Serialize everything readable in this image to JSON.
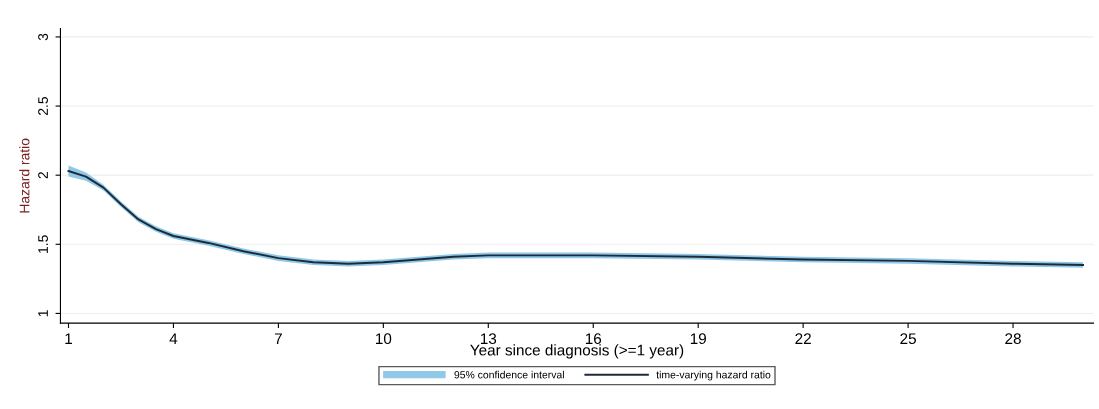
{
  "chart_data": {
    "type": "line",
    "xlabel": "Year since diagnosis (>=1 year)",
    "ylabel": "Hazard ratio",
    "annotations": [
      "95% confidence interval"
    ],
    "x": [
      1,
      1.5,
      2,
      2.5,
      3,
      3.5,
      4,
      5,
      6,
      7,
      8,
      9,
      10,
      11,
      12,
      13,
      14,
      16,
      19,
      22,
      25,
      28,
      30
    ],
    "series": [
      {
        "name": "time-varying hazard ratio",
        "color": "#1c2b3a",
        "values": [
          2.03,
          1.99,
          1.91,
          1.79,
          1.68,
          1.61,
          1.56,
          1.51,
          1.45,
          1.4,
          1.37,
          1.36,
          1.37,
          1.39,
          1.41,
          1.42,
          1.42,
          1.42,
          1.41,
          1.39,
          1.38,
          1.36,
          1.35
        ],
        "lower": [
          1.99,
          1.96,
          1.89,
          1.77,
          1.66,
          1.59,
          1.54,
          1.49,
          1.43,
          1.38,
          1.35,
          1.34,
          1.35,
          1.37,
          1.39,
          1.4,
          1.4,
          1.4,
          1.39,
          1.37,
          1.36,
          1.34,
          1.33
        ],
        "upper": [
          2.07,
          2.02,
          1.93,
          1.81,
          1.7,
          1.63,
          1.58,
          1.53,
          1.47,
          1.42,
          1.39,
          1.38,
          1.39,
          1.41,
          1.43,
          1.44,
          1.44,
          1.44,
          1.43,
          1.41,
          1.4,
          1.38,
          1.37
        ]
      }
    ],
    "xlim": [
      0.77,
      30.3
    ],
    "xticks": [
      1,
      4,
      7,
      10,
      13,
      16,
      19,
      22,
      25,
      28
    ],
    "ylim": [
      0.93,
      3.06
    ],
    "yticks": [
      1,
      1.5,
      2,
      2.5,
      3
    ],
    "grid": "y",
    "legend": "bottom",
    "marker": "none",
    "line_style": "solid"
  }
}
